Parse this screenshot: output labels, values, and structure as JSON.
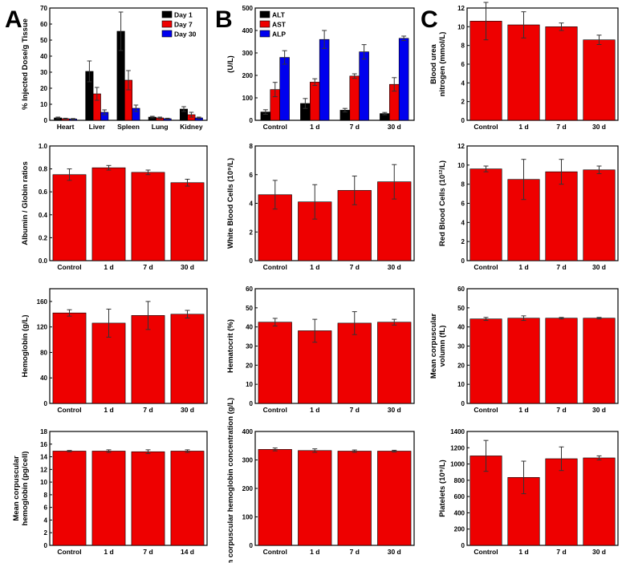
{
  "panel_labels": [
    "A",
    "B",
    "C"
  ],
  "colors": {
    "red": "#ee0000",
    "black": "#000000",
    "blue": "#0000ee",
    "axis": "#000000"
  },
  "chart_data": [
    {
      "id": "biodistribution",
      "type": "bar",
      "categories": [
        "Heart",
        "Liver",
        "Spleen",
        "Lung",
        "Kidney"
      ],
      "ylabel": "% Injected Dose/g Tissue",
      "ylim": [
        0,
        70
      ],
      "yticks": [
        0,
        10,
        20,
        30,
        40,
        50,
        60,
        70
      ],
      "legend_position": "top-right",
      "series": [
        {
          "name": "Day 1",
          "color": "#000000",
          "values": [
            1.5,
            30.5,
            55.5,
            2.0,
            7.0
          ],
          "errors": [
            0.5,
            6.5,
            12.0,
            0.5,
            1.5
          ]
        },
        {
          "name": "Day 7",
          "color": "#ee0000",
          "values": [
            1.0,
            16.5,
            25.0,
            1.5,
            3.5
          ],
          "errors": [
            0.3,
            4.0,
            6.0,
            0.5,
            1.5
          ]
        },
        {
          "name": "Day 30",
          "color": "#0000ee",
          "values": [
            0.8,
            5.0,
            7.5,
            1.0,
            1.5
          ],
          "errors": [
            0.3,
            1.5,
            2.0,
            0.3,
            0.5
          ]
        }
      ]
    },
    {
      "id": "liver-enzymes",
      "type": "bar",
      "categories": [
        "Control",
        "1 d",
        "7 d",
        "30 d"
      ],
      "ylabel": "(U/L)",
      "ylim": [
        0,
        500
      ],
      "yticks": [
        0,
        100,
        200,
        300,
        400,
        500
      ],
      "legend_position": "top-left",
      "series": [
        {
          "name": "ALT",
          "color": "#000000",
          "values": [
            37,
            75,
            45,
            30
          ],
          "errors": [
            10,
            22,
            8,
            5
          ]
        },
        {
          "name": "AST",
          "color": "#ee0000",
          "values": [
            137,
            170,
            197,
            160
          ],
          "errors": [
            32,
            15,
            10,
            30
          ]
        },
        {
          "name": "ALP",
          "color": "#0000ee",
          "values": [
            280,
            360,
            305,
            365
          ],
          "errors": [
            30,
            40,
            32,
            10
          ]
        }
      ]
    },
    {
      "id": "bun",
      "type": "bar",
      "categories": [
        "Control",
        "1 d",
        "7 d",
        "30 d"
      ],
      "ylabel": "Blood urea nitrogen (mmol/L)",
      "ylim": [
        0,
        12
      ],
      "yticks": [
        0,
        2,
        4,
        6,
        8,
        10,
        12
      ],
      "series": [
        {
          "name": "",
          "color": "#ee0000",
          "values": [
            10.6,
            10.2,
            10.0,
            8.6
          ],
          "errors": [
            2.0,
            1.4,
            0.4,
            0.5
          ]
        }
      ]
    },
    {
      "id": "albumin-globin",
      "type": "bar",
      "categories": [
        "Control",
        "1 d",
        "7 d",
        "30 d"
      ],
      "ylabel": "Albumin / Globin ratios",
      "ylim": [
        0,
        1.0
      ],
      "yticks": [
        0.0,
        0.2,
        0.4,
        0.6,
        0.8,
        1.0
      ],
      "series": [
        {
          "name": "",
          "color": "#ee0000",
          "values": [
            0.75,
            0.81,
            0.77,
            0.68
          ],
          "errors": [
            0.05,
            0.02,
            0.02,
            0.03
          ]
        }
      ]
    },
    {
      "id": "wbc",
      "type": "bar",
      "categories": [
        "Control",
        "1 d",
        "7 d",
        "30 d"
      ],
      "ylabel": "White Blood Cells (10⁹/L)",
      "ylim": [
        0,
        8
      ],
      "yticks": [
        0,
        2,
        4,
        6,
        8
      ],
      "series": [
        {
          "name": "",
          "color": "#ee0000",
          "values": [
            4.6,
            4.1,
            4.9,
            5.5
          ],
          "errors": [
            1.0,
            1.2,
            1.0,
            1.2
          ]
        }
      ]
    },
    {
      "id": "rbc",
      "type": "bar",
      "categories": [
        "Control",
        "1 d",
        "7 d",
        "30 d"
      ],
      "ylabel": "Red Blood Cells (10¹²/L)",
      "ylim": [
        0,
        12
      ],
      "yticks": [
        0,
        2,
        4,
        6,
        8,
        10,
        12
      ],
      "series": [
        {
          "name": "",
          "color": "#ee0000",
          "values": [
            9.6,
            8.5,
            9.3,
            9.5
          ],
          "errors": [
            0.3,
            2.1,
            1.3,
            0.4
          ]
        }
      ]
    },
    {
      "id": "hemoglobin",
      "type": "bar",
      "categories": [
        "Control",
        "1 d",
        "7 d",
        "30 d"
      ],
      "ylabel": "Hemoglobin (g/L)",
      "ylim": [
        0,
        180
      ],
      "yticks": [
        0,
        40,
        80,
        120,
        160
      ],
      "series": [
        {
          "name": "",
          "color": "#ee0000",
          "values": [
            142,
            126,
            138,
            140
          ],
          "errors": [
            5,
            22,
            22,
            6
          ]
        }
      ]
    },
    {
      "id": "hematocrit",
      "type": "bar",
      "categories": [
        "Control",
        "1 d",
        "7 d",
        "30 d"
      ],
      "ylabel": "Hematocrit (%)",
      "ylim": [
        0,
        60
      ],
      "yticks": [
        0,
        10,
        20,
        30,
        40,
        50,
        60
      ],
      "series": [
        {
          "name": "",
          "color": "#ee0000",
          "values": [
            42.5,
            38,
            42,
            42.5
          ],
          "errors": [
            2,
            6,
            6,
            1.5
          ]
        }
      ]
    },
    {
      "id": "mcv",
      "type": "bar",
      "categories": [
        "Control",
        "1 d",
        "7 d",
        "30 d"
      ],
      "ylabel": "Mean corpuscular volumn (fL)",
      "ylim": [
        0,
        60
      ],
      "yticks": [
        0,
        10,
        20,
        30,
        40,
        50,
        60
      ],
      "series": [
        {
          "name": "",
          "color": "#ee0000",
          "values": [
            44.2,
            44.6,
            44.6,
            44.6
          ],
          "errors": [
            0.8,
            1.2,
            0.4,
            0.4
          ]
        }
      ]
    },
    {
      "id": "mch",
      "type": "bar",
      "categories": [
        "Control",
        "1 d",
        "7 d",
        "14 d"
      ],
      "ylabel": "Mean corpuscular hemoglobin (pg/cell)",
      "ylim": [
        0,
        18
      ],
      "yticks": [
        0,
        2,
        4,
        6,
        8,
        10,
        12,
        14,
        16,
        18
      ],
      "series": [
        {
          "name": "",
          "color": "#ee0000",
          "values": [
            14.9,
            14.9,
            14.8,
            14.9
          ],
          "errors": [
            0.1,
            0.2,
            0.3,
            0.2
          ]
        }
      ]
    },
    {
      "id": "mchc",
      "type": "bar",
      "categories": [
        "Control",
        "1 d",
        "7 d",
        "30 d"
      ],
      "ylabel": "Mean corpuscular hemoglobin concentration (g/L)",
      "ylim": [
        0,
        400
      ],
      "yticks": [
        0,
        100,
        200,
        300,
        400
      ],
      "series": [
        {
          "name": "",
          "color": "#ee0000",
          "values": [
            337,
            333,
            331,
            331
          ],
          "errors": [
            5,
            6,
            4,
            3
          ]
        }
      ]
    },
    {
      "id": "platelets",
      "type": "bar",
      "categories": [
        "Control",
        "1 d",
        "7 d",
        "30 d"
      ],
      "ylabel": "Platelets (10⁹/L)",
      "ylim": [
        0,
        1400
      ],
      "yticks": [
        0,
        200,
        400,
        600,
        800,
        1000,
        1200,
        1400
      ],
      "series": [
        {
          "name": "",
          "color": "#ee0000",
          "values": [
            1100,
            835,
            1065,
            1075
          ],
          "errors": [
            190,
            200,
            145,
            25
          ]
        }
      ]
    }
  ]
}
